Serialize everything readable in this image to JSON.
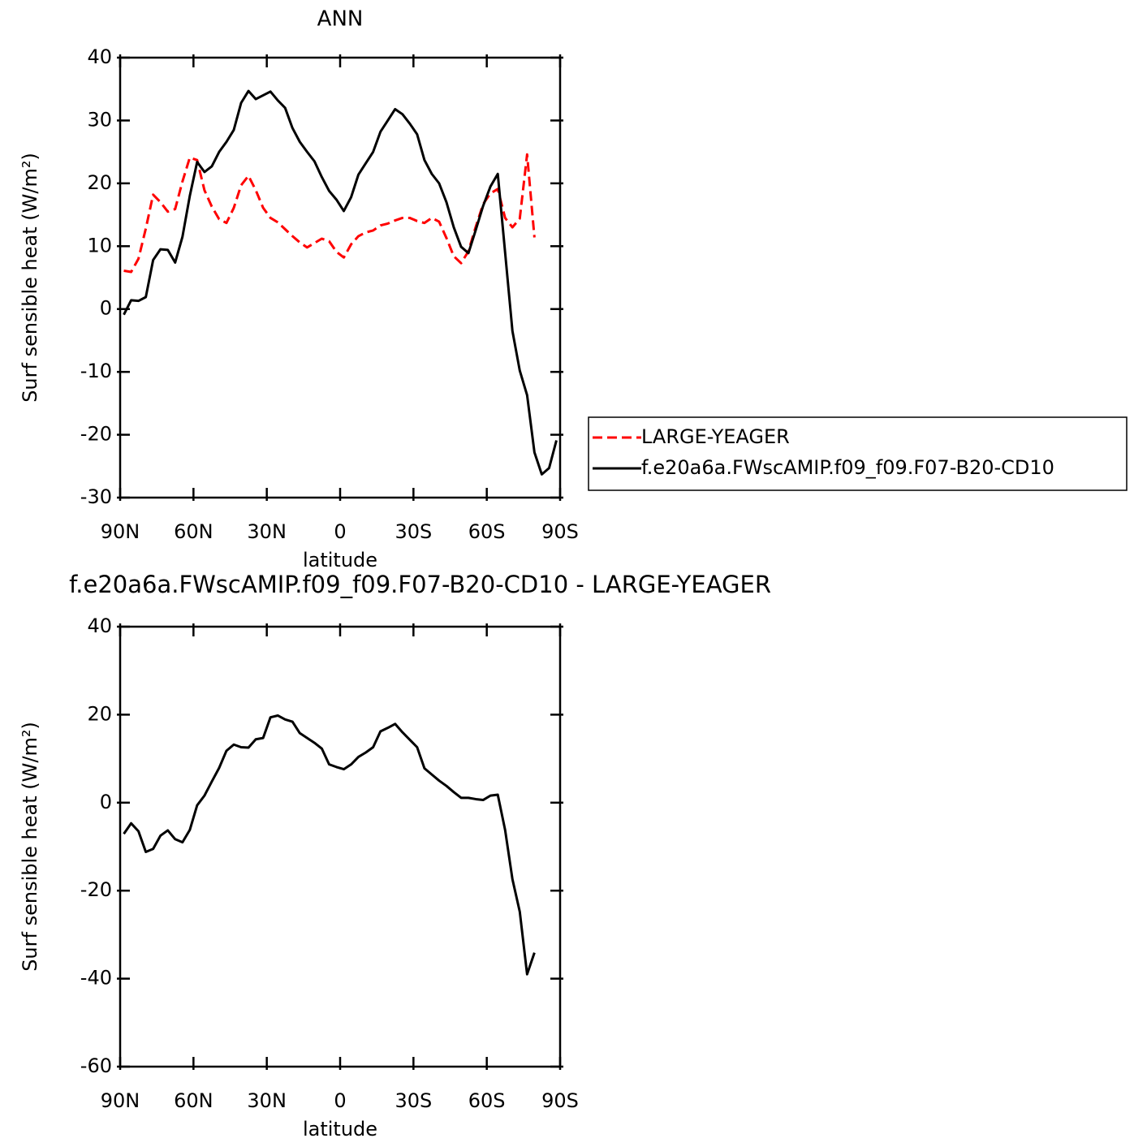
{
  "chart_data": [
    {
      "type": "line",
      "title": "ANN",
      "xlabel": "latitude",
      "ylabel": "Surf sensible heat (W/m²)",
      "x": [
        88.5,
        85.5,
        82.5,
        79.5,
        76.5,
        73.5,
        70.5,
        67.5,
        64.5,
        61.5,
        58.5,
        55.5,
        52.5,
        49.5,
        46.5,
        43.5,
        40.5,
        37.5,
        34.5,
        31.5,
        28.5,
        25.5,
        22.5,
        19.5,
        16.5,
        13.5,
        10.5,
        7.5,
        4.5,
        1.5,
        -1.5,
        -4.5,
        -7.5,
        -10.5,
        -13.5,
        -16.5,
        -19.5,
        -22.5,
        -25.5,
        -28.5,
        -31.5,
        -34.5,
        -37.5,
        -40.5,
        -43.5,
        -46.5,
        -49.5,
        -52.5,
        -55.5,
        -58.5,
        -61.5,
        -64.5,
        -67.5,
        -70.5,
        -73.5,
        -76.5,
        -79.5,
        -82.5,
        -85.5,
        -88.5
      ],
      "series": [
        {
          "name": "LARGE-YEAGER",
          "color": "#ff0000",
          "dashed": true,
          "values": [
            6.1,
            5.9,
            8,
            12.8,
            18.2,
            17,
            15.5,
            15.9,
            20.3,
            24.1,
            23.7,
            18.9,
            16.3,
            14.3,
            13.7,
            16.1,
            19.7,
            21.2,
            18.9,
            16.1,
            14.5,
            13.8,
            12.7,
            11.6,
            10.6,
            9.8,
            10.5,
            11.2,
            10.8,
            9.1,
            8.2,
            10.3,
            11.6,
            12.2,
            12.5,
            13.3,
            13.6,
            14.1,
            14.5,
            14.5,
            14,
            13.7,
            14.5,
            13.9,
            11.3,
            8.4,
            7.3,
            9.2,
            13.1,
            16.7,
            18.4,
            19.1,
            14.5,
            13,
            14.4,
            24.6,
            11.4,
            null,
            null,
            null
          ]
        },
        {
          "name": "f.e20a6a.FWscAMIP.f09_f09.F07-B20-CD10",
          "color": "#000000",
          "dashed": false,
          "values": [
            -0.9,
            1.4,
            1.3,
            1.9,
            7.8,
            9.5,
            9.4,
            7.4,
            11.5,
            18,
            23.4,
            21.8,
            22.7,
            25,
            26.6,
            28.5,
            32.8,
            34.7,
            33.4,
            34,
            34.6,
            33.2,
            32,
            28.8,
            26.6,
            25,
            23.5,
            21,
            18.8,
            17.4,
            15.6,
            17.8,
            21.4,
            23.2,
            25,
            28.2,
            30,
            31.8,
            31,
            29.5,
            27.8,
            23.7,
            21.5,
            20,
            17,
            13,
            9.9,
            8.9,
            12.6,
            16.4,
            19.5,
            21.5,
            9,
            -3.5,
            -9.8,
            -13.7,
            -22.8,
            -26.3,
            -25.3,
            -20.9
          ]
        }
      ],
      "xlim": [
        90,
        -90
      ],
      "xticks": [
        {
          "value": 90,
          "label": "90N"
        },
        {
          "value": 60,
          "label": "60N"
        },
        {
          "value": 30,
          "label": "30N"
        },
        0,
        {
          "value": -30,
          "label": "30S"
        },
        {
          "value": -60,
          "label": "60S"
        },
        {
          "value": -90,
          "label": "90S"
        }
      ],
      "ylim": [
        -30,
        40
      ],
      "yticks": [
        -30,
        -20,
        -10,
        0,
        10,
        20,
        30,
        40
      ],
      "legend": "right"
    },
    {
      "type": "line",
      "title": "f.e20a6a.FWscAMIP.f09_f09.F07-B20-CD10 - LARGE-YEAGER",
      "xlabel": "latitude",
      "ylabel": "Surf sensible heat (W/m²)",
      "x": [
        88.5,
        85.5,
        82.5,
        79.5,
        76.5,
        73.5,
        70.5,
        67.5,
        64.5,
        61.5,
        58.5,
        55.5,
        52.5,
        49.5,
        46.5,
        43.5,
        40.5,
        37.5,
        34.5,
        31.5,
        28.5,
        25.5,
        22.5,
        19.5,
        16.5,
        13.5,
        10.5,
        7.5,
        4.5,
        1.5,
        -1.5,
        -4.5,
        -7.5,
        -10.5,
        -13.5,
        -16.5,
        -19.5,
        -22.5,
        -25.5,
        -28.5,
        -31.5,
        -34.5,
        -37.5,
        -40.5,
        -43.5,
        -46.5,
        -49.5,
        -52.5,
        -55.5,
        -58.5,
        -61.5,
        -64.5,
        -67.5,
        -70.5,
        -73.5,
        -76.5,
        -79.5,
        -82.5,
        -85.5,
        -88.5
      ],
      "series": [
        {
          "color": "#000000",
          "dashed": false,
          "values": [
            -7.1,
            -4.7,
            -6.5,
            -11.2,
            -10.5,
            -7.5,
            -6.3,
            -8.3,
            -9,
            -6.2,
            -0.6,
            1.6,
            4.8,
            7.9,
            11.8,
            13.2,
            12.6,
            12.5,
            14.4,
            14.7,
            19.4,
            19.8,
            18.9,
            18.4,
            15.8,
            14.7,
            13.6,
            12.3,
            8.7,
            8.1,
            7.6,
            8.7,
            10.4,
            11.4,
            12.6,
            16.2,
            17,
            17.9,
            16,
            14.3,
            12.6,
            7.8,
            6.4,
            5,
            3.8,
            2.4,
            1.1,
            1.1,
            0.8,
            0.6,
            1.6,
            1.8,
            -6.2,
            -17.4,
            -24.8,
            -39,
            -34.1,
            null,
            null,
            null
          ]
        }
      ],
      "xlim": [
        90,
        -90
      ],
      "xticks": [
        {
          "value": 90,
          "label": "90N"
        },
        {
          "value": 60,
          "label": "60N"
        },
        {
          "value": 30,
          "label": "30N"
        },
        0,
        {
          "value": -30,
          "label": "30S"
        },
        {
          "value": -60,
          "label": "60S"
        },
        {
          "value": -90,
          "label": "90S"
        }
      ],
      "ylim": [
        -60,
        40
      ],
      "yticks": [
        -60,
        -40,
        -20,
        0,
        20,
        40
      ]
    }
  ]
}
